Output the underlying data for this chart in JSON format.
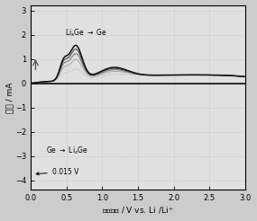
{
  "title": "",
  "xlabel": "嵌锂电位 / V vs. Li /Li+",
  "ylabel": "电流 / mA",
  "xlim": [
    0.0,
    3.0
  ],
  "ylim": [
    -4.4,
    3.2
  ],
  "xticks": [
    0.0,
    0.5,
    1.0,
    1.5,
    2.0,
    2.5,
    3.0
  ],
  "yticks": [
    -4,
    -3,
    -2,
    -1,
    0,
    1,
    2,
    3
  ],
  "bg_color": "#e0e0e0",
  "cycle_colors": [
    "#cccccc",
    "#aaaaaa",
    "#777777",
    "#444444",
    "#111111"
  ],
  "num_cycles": 5,
  "cat_scales": [
    1.0,
    0.55,
    0.5,
    0.48,
    0.46
  ],
  "an_scales": [
    0.3,
    0.55,
    0.7,
    0.82,
    0.92
  ]
}
